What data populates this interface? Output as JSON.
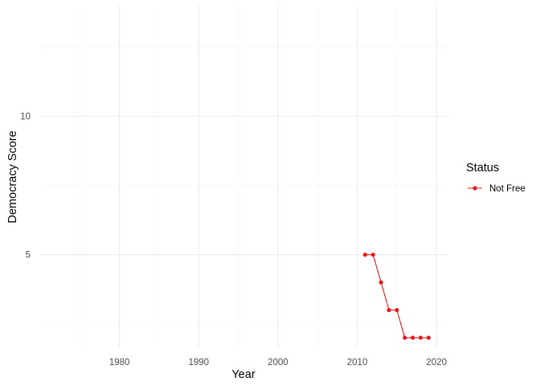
{
  "chart_data": {
    "type": "line",
    "xlabel": "Year",
    "ylabel": "Democracy Score",
    "xlim": [
      1970,
      2021.5
    ],
    "ylim": [
      1.65,
      14
    ],
    "x_ticks": [
      1980,
      1990,
      2000,
      2010,
      2020
    ],
    "x_minor_ticks": [
      1975,
      1985,
      1995,
      2005,
      2015
    ],
    "y_ticks": [
      5,
      10
    ],
    "y_minor_ticks": [
      2.5,
      7.5,
      12.5
    ],
    "grid": true,
    "legend_position": "right",
    "legend_title": "Status",
    "series": [
      {
        "name": "Not Free",
        "color": "#e41a1c",
        "x": [
          2011,
          2012,
          2013,
          2014,
          2015,
          2016,
          2017,
          2018,
          2019
        ],
        "y": [
          5,
          5,
          4,
          3,
          3,
          2,
          2,
          2,
          2
        ]
      }
    ]
  }
}
